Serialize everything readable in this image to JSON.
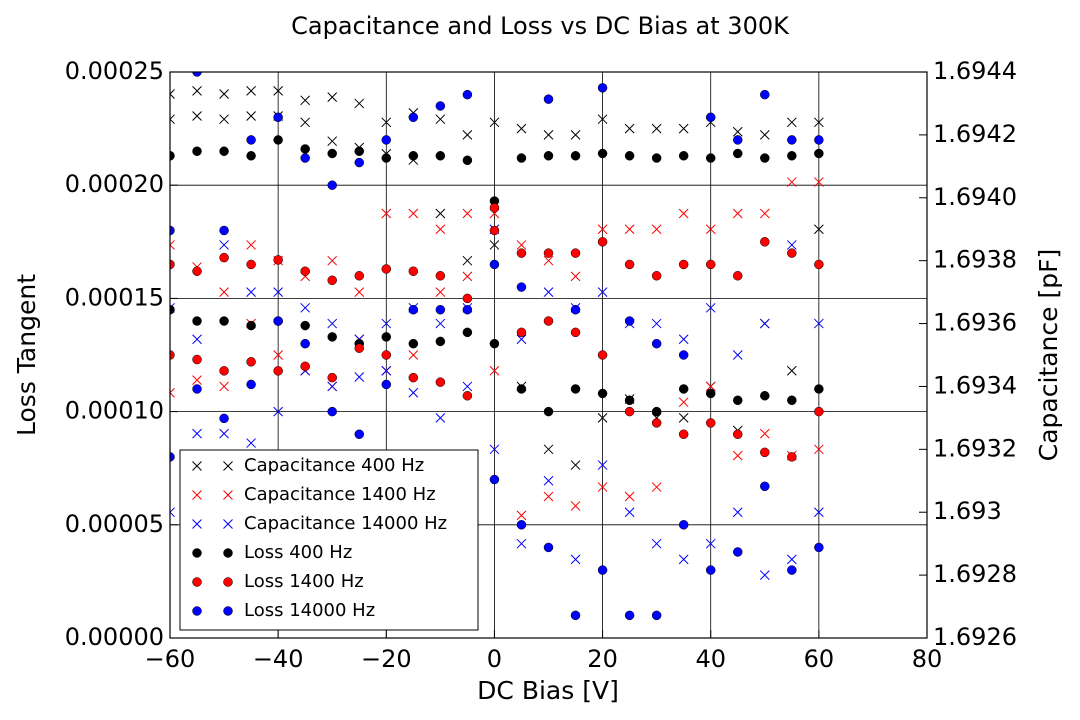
{
  "chart_data": {
    "type": "scatter",
    "title": "Capacitance and Loss vs DC Bias at 300K",
    "xlabel": "DC Bias [V]",
    "ylabel": "Loss Tangent",
    "y2label": "Capacitance [pF]",
    "xlim": [
      -60,
      80
    ],
    "xticks": [
      {
        "value": -60,
        "label": "−60"
      },
      {
        "value": -40,
        "label": "−40"
      },
      {
        "value": -20,
        "label": "−20"
      },
      0,
      20,
      40,
      60,
      80
    ],
    "ylim": [
      0,
      0.00025
    ],
    "yticks": [
      {
        "value": 0,
        "label": "0.00000"
      },
      {
        "value": 5e-05,
        "label": "0.00005"
      },
      {
        "value": 0.0001,
        "label": "0.00010"
      },
      {
        "value": 0.00015,
        "label": "0.00015"
      },
      {
        "value": 0.0002,
        "label": "0.00020"
      },
      {
        "value": 0.00025,
        "label": "0.00025"
      }
    ],
    "y2lim": [
      1.6926,
      1.6944
    ],
    "y2ticks": [
      1.6926,
      1.6928,
      1.693,
      1.6932,
      1.6934,
      1.6936,
      1.6938,
      {
        "value": 1.694,
        "label": "1.6940"
      },
      1.6942,
      1.6944
    ],
    "grid": true,
    "legend": "lower left",
    "x": [
      -60,
      -60,
      -55,
      -55,
      -50,
      -50,
      -45,
      -45,
      -40,
      -40,
      -35,
      -35,
      -30,
      -30,
      -25,
      -25,
      -20,
      -20,
      -15,
      -15,
      -10,
      -10,
      -5,
      -5,
      0,
      0,
      5,
      5,
      10,
      10,
      15,
      15,
      20,
      20,
      25,
      25,
      30,
      30,
      35,
      35,
      40,
      40,
      45,
      45,
      50,
      50,
      55,
      55,
      60,
      60
    ],
    "series": [
      {
        "name": "Capacitance 400 Hz",
        "color": "#000000",
        "marker": "x",
        "axis": "y2",
        "values": [
          1.69433,
          1.69425,
          1.69434,
          1.69426,
          1.69433,
          1.69425,
          1.69434,
          1.69426,
          1.69434,
          1.69426,
          1.69431,
          1.69424,
          1.69432,
          1.69418,
          1.6943,
          1.69416,
          1.69424,
          1.69414,
          1.69427,
          1.69412,
          1.69425,
          1.69395,
          1.6942,
          1.6938,
          1.69424,
          1.69385,
          1.69422,
          1.6934,
          1.6942,
          1.6932,
          1.6942,
          1.69315,
          1.69425,
          1.6933,
          1.69422,
          1.69336,
          1.69422,
          1.6933,
          1.69422,
          1.6933,
          1.69424,
          1.6934,
          1.69421,
          1.69326,
          1.6942,
          1.6936,
          1.69424,
          1.69345,
          1.69424,
          1.6939
        ]
      },
      {
        "name": "Capacitance 1400 Hz",
        "color": "#ff0000",
        "marker": "x",
        "axis": "y2",
        "values": [
          1.69385,
          1.69338,
          1.69378,
          1.69342,
          1.6937,
          1.6934,
          1.69385,
          1.6936,
          1.6938,
          1.6935,
          1.69375,
          1.69345,
          1.6938,
          1.6934,
          1.6937,
          1.69355,
          1.69395,
          1.69345,
          1.69395,
          1.6935,
          1.6939,
          1.6937,
          1.69395,
          1.69375,
          1.69395,
          1.69345,
          1.69385,
          1.69299,
          1.6938,
          1.69305,
          1.69375,
          1.69302,
          1.6939,
          1.69308,
          1.6939,
          1.69305,
          1.6939,
          1.69308,
          1.69395,
          1.69335,
          1.6939,
          1.6934,
          1.69395,
          1.69318,
          1.69395,
          1.69325,
          1.69405,
          1.69318,
          1.69405,
          1.6932
        ]
      },
      {
        "name": "Capacitance 14000 Hz",
        "color": "#0000ff",
        "marker": "x",
        "axis": "y2",
        "values": [
          1.69365,
          1.693,
          1.69355,
          1.69325,
          1.69385,
          1.69325,
          1.6937,
          1.69322,
          1.6937,
          1.69332,
          1.69365,
          1.69345,
          1.6936,
          1.6934,
          1.69355,
          1.69343,
          1.6936,
          1.69345,
          1.69365,
          1.69338,
          1.6936,
          1.6933,
          1.69365,
          1.6934,
          1.6939,
          1.6932,
          1.69355,
          1.6929,
          1.6937,
          1.6931,
          1.69365,
          1.69285,
          1.6937,
          1.69315,
          1.6936,
          1.693,
          1.6936,
          1.6929,
          1.69355,
          1.69285,
          1.69365,
          1.6929,
          1.6935,
          1.693,
          1.6936,
          1.6928,
          1.69385,
          1.69285,
          1.6936,
          1.693
        ]
      },
      {
        "name": "Loss 400 Hz",
        "color": "#000000",
        "marker": "o",
        "values": [
          0.000213,
          0.000145,
          0.000215,
          0.00014,
          0.000215,
          0.00014,
          0.000213,
          0.000138,
          0.00022,
          0.00014,
          0.000216,
          0.000138,
          0.000214,
          0.000133,
          0.000215,
          0.00013,
          0.000212,
          0.000133,
          0.000213,
          0.00013,
          0.000213,
          0.000131,
          0.000211,
          0.000135,
          0.000193,
          0.00013,
          0.000212,
          0.00011,
          0.000213,
          0.0001,
          0.000213,
          0.00011,
          0.000214,
          0.000108,
          0.000213,
          0.000105,
          0.000212,
          0.0001,
          0.000213,
          0.00011,
          0.000212,
          0.000108,
          0.000214,
          0.000105,
          0.000212,
          0.000107,
          0.000213,
          0.000105,
          0.000214,
          0.00011
        ]
      },
      {
        "name": "Loss 1400 Hz",
        "color": "#ff0000",
        "marker": "o",
        "values": [
          0.000165,
          0.000125,
          0.000162,
          0.000123,
          0.000168,
          0.000118,
          0.000165,
          0.000122,
          0.000167,
          0.000118,
          0.000162,
          0.00012,
          0.000158,
          0.000115,
          0.00016,
          0.000128,
          0.000163,
          0.000125,
          0.000162,
          0.000115,
          0.00016,
          0.000113,
          0.00015,
          0.000107,
          0.00019,
          0.00018,
          0.00017,
          0.000135,
          0.00017,
          0.00014,
          0.00017,
          0.000135,
          0.000175,
          0.000125,
          0.000165,
          0.0001,
          0.00016,
          9.5e-05,
          0.000165,
          9e-05,
          0.000165,
          9.5e-05,
          0.00016,
          9e-05,
          0.000175,
          8.2e-05,
          0.00017,
          8e-05,
          0.000165,
          0.0001
        ]
      },
      {
        "name": "Loss 14000 Hz",
        "color": "#0000ff",
        "marker": "o",
        "values": [
          0.00018,
          8e-05,
          0.00025,
          0.00011,
          0.00018,
          9.7e-05,
          0.00022,
          0.000112,
          0.00023,
          0.00014,
          0.000212,
          0.00013,
          0.0002,
          0.0001,
          0.00021,
          9e-05,
          0.00022,
          0.000112,
          0.00023,
          0.000145,
          0.000235,
          0.000145,
          0.00024,
          0.000145,
          0.000165,
          7e-05,
          0.000155,
          5e-05,
          0.000238,
          4e-05,
          0.000145,
          1e-05,
          0.000243,
          3e-05,
          0.00014,
          1e-05,
          0.00013,
          1e-05,
          0.000125,
          5e-05,
          0.00023,
          3e-05,
          0.00022,
          3.8e-05,
          0.00024,
          6.7e-05,
          0.00022,
          3e-05,
          0.00022,
          4e-05
        ]
      }
    ]
  }
}
